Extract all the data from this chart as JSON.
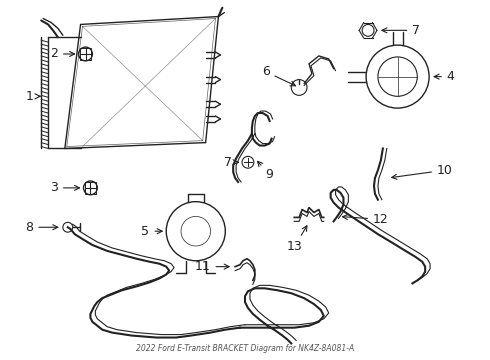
{
  "title": "2022 Ford E-Transit BRACKET Diagram for NK4Z-8A081-A",
  "bg": "#ffffff",
  "lc": "#222222",
  "fig_w": 4.9,
  "fig_h": 3.6,
  "dpi": 100
}
